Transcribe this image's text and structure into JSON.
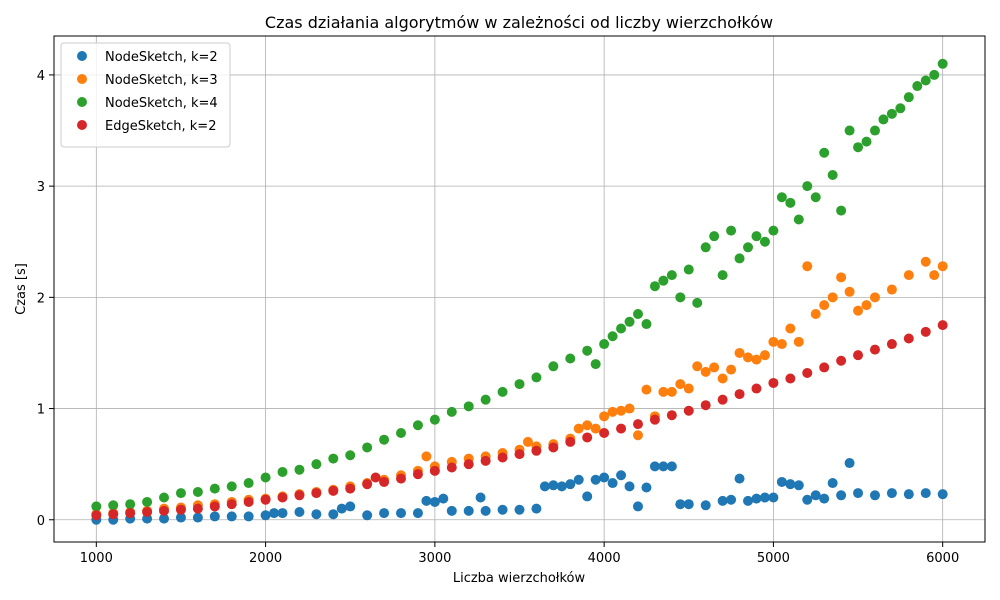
{
  "chart_data": {
    "type": "scatter",
    "title": "Czas działania algorytmów w zależności od liczby wierzchołków",
    "xlabel": "Liczba wierzchołków",
    "ylabel": "Czas [s]",
    "xlim": [
      750,
      6250
    ],
    "ylim": [
      -0.2,
      4.35
    ],
    "xticks": [
      1000,
      2000,
      3000,
      4000,
      5000,
      6000
    ],
    "yticks": [
      0,
      1,
      2,
      3,
      4
    ],
    "grid": true,
    "legend_position": "top-left",
    "series": [
      {
        "name": "NodeSketch, k=2",
        "color": "#1f77b4",
        "x": [
          1000,
          1100,
          1200,
          1300,
          1400,
          1500,
          1600,
          1700,
          1800,
          1900,
          2000,
          2050,
          2100,
          2200,
          2300,
          2400,
          2450,
          2500,
          2600,
          2700,
          2800,
          2900,
          2950,
          3000,
          3050,
          3100,
          3200,
          3270,
          3300,
          3400,
          3500,
          3600,
          3650,
          3700,
          3750,
          3800,
          3850,
          3900,
          3950,
          4000,
          4050,
          4100,
          4150,
          4200,
          4250,
          4300,
          4350,
          4400,
          4450,
          4500,
          4600,
          4700,
          4750,
          4800,
          4850,
          4900,
          4950,
          5000,
          5050,
          5100,
          5150,
          5200,
          5250,
          5300,
          5350,
          5400,
          5450,
          5500,
          5600,
          5700,
          5800,
          5900,
          6000
        ],
        "y": [
          0.0,
          0.0,
          0.01,
          0.01,
          0.01,
          0.02,
          0.02,
          0.03,
          0.03,
          0.03,
          0.04,
          0.06,
          0.06,
          0.07,
          0.05,
          0.05,
          0.1,
          0.12,
          0.04,
          0.06,
          0.06,
          0.06,
          0.17,
          0.16,
          0.19,
          0.08,
          0.08,
          0.2,
          0.08,
          0.09,
          0.09,
          0.1,
          0.3,
          0.31,
          0.3,
          0.32,
          0.36,
          0.21,
          0.36,
          0.38,
          0.33,
          0.4,
          0.3,
          0.12,
          0.29,
          0.48,
          0.48,
          0.48,
          0.14,
          0.14,
          0.13,
          0.17,
          0.18,
          0.37,
          0.17,
          0.19,
          0.2,
          0.2,
          0.34,
          0.32,
          0.31,
          0.18,
          0.22,
          0.19,
          0.33,
          0.22,
          0.51,
          0.24,
          0.22,
          0.24,
          0.23,
          0.24,
          0.23
        ]
      },
      {
        "name": "NodeSketch, k=3",
        "color": "#ff7f0e",
        "x": [
          1000,
          1100,
          1200,
          1300,
          1400,
          1500,
          1600,
          1700,
          1800,
          1900,
          2000,
          2100,
          2200,
          2300,
          2400,
          2500,
          2600,
          2700,
          2800,
          2900,
          2950,
          3000,
          3100,
          3200,
          3300,
          3400,
          3500,
          3550,
          3600,
          3700,
          3800,
          3850,
          3900,
          3950,
          4000,
          4050,
          4100,
          4150,
          4200,
          4250,
          4300,
          4350,
          4400,
          4450,
          4500,
          4550,
          4600,
          4650,
          4700,
          4750,
          4800,
          4850,
          4900,
          4950,
          5000,
          5050,
          5100,
          5150,
          5200,
          5250,
          5300,
          5350,
          5400,
          5450,
          5500,
          5550,
          5600,
          5700,
          5800,
          5900,
          5950,
          6000
        ],
        "y": [
          0.05,
          0.06,
          0.07,
          0.08,
          0.1,
          0.11,
          0.13,
          0.14,
          0.16,
          0.18,
          0.19,
          0.21,
          0.23,
          0.25,
          0.27,
          0.3,
          0.33,
          0.36,
          0.4,
          0.44,
          0.57,
          0.48,
          0.52,
          0.55,
          0.57,
          0.6,
          0.63,
          0.7,
          0.66,
          0.68,
          0.73,
          0.82,
          0.85,
          0.82,
          0.93,
          0.97,
          0.98,
          1.0,
          0.76,
          1.17,
          0.93,
          1.15,
          1.15,
          1.22,
          1.18,
          1.38,
          1.33,
          1.37,
          1.27,
          1.35,
          1.5,
          1.46,
          1.44,
          1.48,
          1.6,
          1.58,
          1.72,
          1.6,
          2.28,
          1.85,
          1.93,
          2.0,
          2.18,
          2.05,
          1.88,
          1.93,
          2.0,
          2.07,
          2.2,
          2.32,
          2.2,
          2.28
        ]
      },
      {
        "name": "NodeSketch, k=4",
        "color": "#2ca02c",
        "x": [
          1000,
          1100,
          1200,
          1300,
          1400,
          1500,
          1600,
          1700,
          1800,
          1900,
          2000,
          2100,
          2200,
          2300,
          2400,
          2500,
          2600,
          2700,
          2800,
          2900,
          3000,
          3100,
          3200,
          3300,
          3400,
          3500,
          3600,
          3700,
          3800,
          3900,
          3950,
          4000,
          4050,
          4100,
          4150,
          4200,
          4250,
          4300,
          4350,
          4400,
          4450,
          4500,
          4550,
          4600,
          4650,
          4700,
          4750,
          4800,
          4850,
          4900,
          4950,
          5000,
          5050,
          5100,
          5150,
          5200,
          5250,
          5300,
          5350,
          5400,
          5450,
          5500,
          5550,
          5600,
          5650,
          5700,
          5750,
          5800,
          5850,
          5900,
          5950,
          6000
        ],
        "y": [
          0.12,
          0.13,
          0.14,
          0.16,
          0.2,
          0.24,
          0.25,
          0.28,
          0.3,
          0.33,
          0.38,
          0.43,
          0.45,
          0.5,
          0.55,
          0.58,
          0.65,
          0.72,
          0.78,
          0.85,
          0.9,
          0.97,
          1.02,
          1.08,
          1.15,
          1.22,
          1.28,
          1.38,
          1.45,
          1.52,
          1.4,
          1.58,
          1.65,
          1.72,
          1.78,
          1.85,
          1.76,
          2.1,
          2.15,
          2.2,
          2.0,
          2.25,
          1.95,
          2.45,
          2.55,
          2.2,
          2.6,
          2.35,
          2.45,
          2.55,
          2.5,
          2.6,
          2.9,
          2.85,
          2.7,
          3.0,
          2.9,
          3.3,
          3.1,
          2.78,
          3.5,
          3.35,
          3.4,
          3.5,
          3.6,
          3.65,
          3.7,
          3.8,
          3.9,
          3.95,
          4.0,
          4.1
        ]
      },
      {
        "name": "EdgeSketch, k=2",
        "color": "#d62728",
        "x": [
          1000,
          1100,
          1200,
          1300,
          1400,
          1500,
          1600,
          1700,
          1800,
          1900,
          2000,
          2100,
          2200,
          2300,
          2400,
          2500,
          2600,
          2650,
          2700,
          2800,
          2900,
          3000,
          3100,
          3200,
          3300,
          3400,
          3500,
          3600,
          3700,
          3800,
          3900,
          4000,
          4100,
          4200,
          4300,
          4400,
          4500,
          4600,
          4700,
          4800,
          4900,
          5000,
          5100,
          5200,
          5300,
          5400,
          5500,
          5600,
          5700,
          5800,
          5900,
          6000
        ],
        "y": [
          0.04,
          0.05,
          0.06,
          0.07,
          0.08,
          0.09,
          0.1,
          0.12,
          0.14,
          0.16,
          0.18,
          0.2,
          0.22,
          0.24,
          0.26,
          0.28,
          0.32,
          0.38,
          0.34,
          0.37,
          0.41,
          0.44,
          0.47,
          0.5,
          0.53,
          0.56,
          0.59,
          0.62,
          0.65,
          0.7,
          0.74,
          0.78,
          0.82,
          0.86,
          0.9,
          0.94,
          0.98,
          1.03,
          1.08,
          1.13,
          1.18,
          1.23,
          1.27,
          1.32,
          1.37,
          1.43,
          1.48,
          1.53,
          1.58,
          1.63,
          1.69,
          1.75
        ]
      }
    ]
  }
}
